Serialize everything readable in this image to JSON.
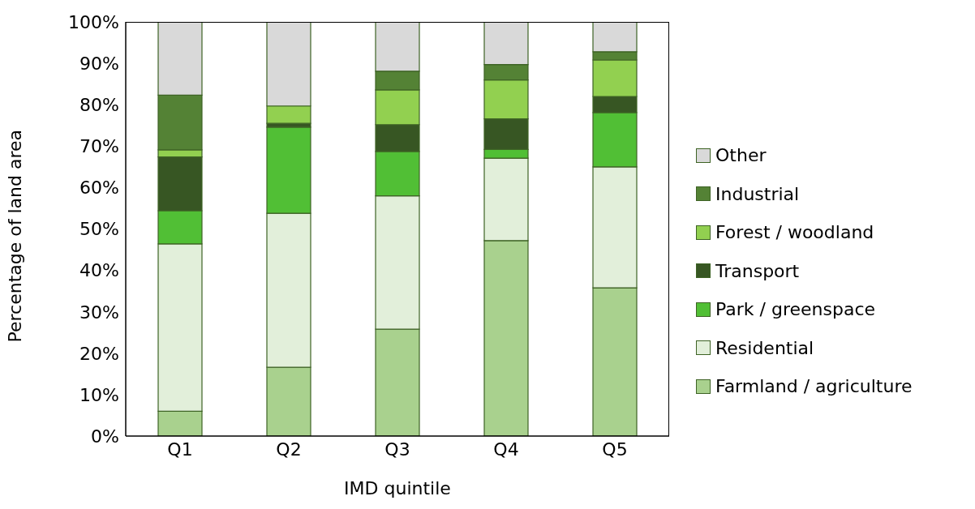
{
  "chart_data": {
    "type": "bar",
    "stacked": true,
    "xlabel": "IMD quintile",
    "ylabel": "Percentage of land area",
    "categories": [
      "Q1",
      "Q2",
      "Q3",
      "Q4",
      "Q5"
    ],
    "series": [
      {
        "name": "Farmland / agriculture",
        "color": "#a9d18e",
        "values": [
          6.0,
          16.6,
          25.8,
          47.2,
          35.8
        ]
      },
      {
        "name": "Residential",
        "color": "#e2efda",
        "values": [
          40.4,
          37.2,
          32.2,
          19.9,
          29.2
        ]
      },
      {
        "name": "Park / greenspace",
        "color": "#51bf35",
        "values": [
          8.0,
          20.8,
          10.7,
          2.1,
          13.1
        ]
      },
      {
        "name": "Transport",
        "color": "#375623",
        "values": [
          13.0,
          0.9,
          6.5,
          7.4,
          3.9
        ]
      },
      {
        "name": "Forest / woodland",
        "color": "#92d050",
        "values": [
          1.7,
          4.2,
          8.4,
          9.4,
          8.8
        ]
      },
      {
        "name": "Industrial",
        "color": "#548235",
        "values": [
          13.2,
          0,
          4.5,
          3.7,
          2.0
        ]
      },
      {
        "name": "Other",
        "color": "#d9d9d9",
        "values": [
          17.7,
          20.3,
          11.9,
          10.3,
          7.2
        ]
      }
    ],
    "ylim": [
      0,
      100
    ],
    "yticks": [
      {
        "value": 0,
        "label": "0%"
      },
      {
        "value": 10,
        "label": "10%"
      },
      {
        "value": 20,
        "label": "20%"
      },
      {
        "value": 30,
        "label": "30%"
      },
      {
        "value": 40,
        "label": "40%"
      },
      {
        "value": 50,
        "label": "50%"
      },
      {
        "value": 60,
        "label": "60%"
      },
      {
        "value": 70,
        "label": "70%"
      },
      {
        "value": 80,
        "label": "80%"
      },
      {
        "value": 90,
        "label": "90%"
      },
      {
        "value": 100,
        "label": "100%"
      }
    ],
    "grid": false,
    "legend": "right"
  }
}
